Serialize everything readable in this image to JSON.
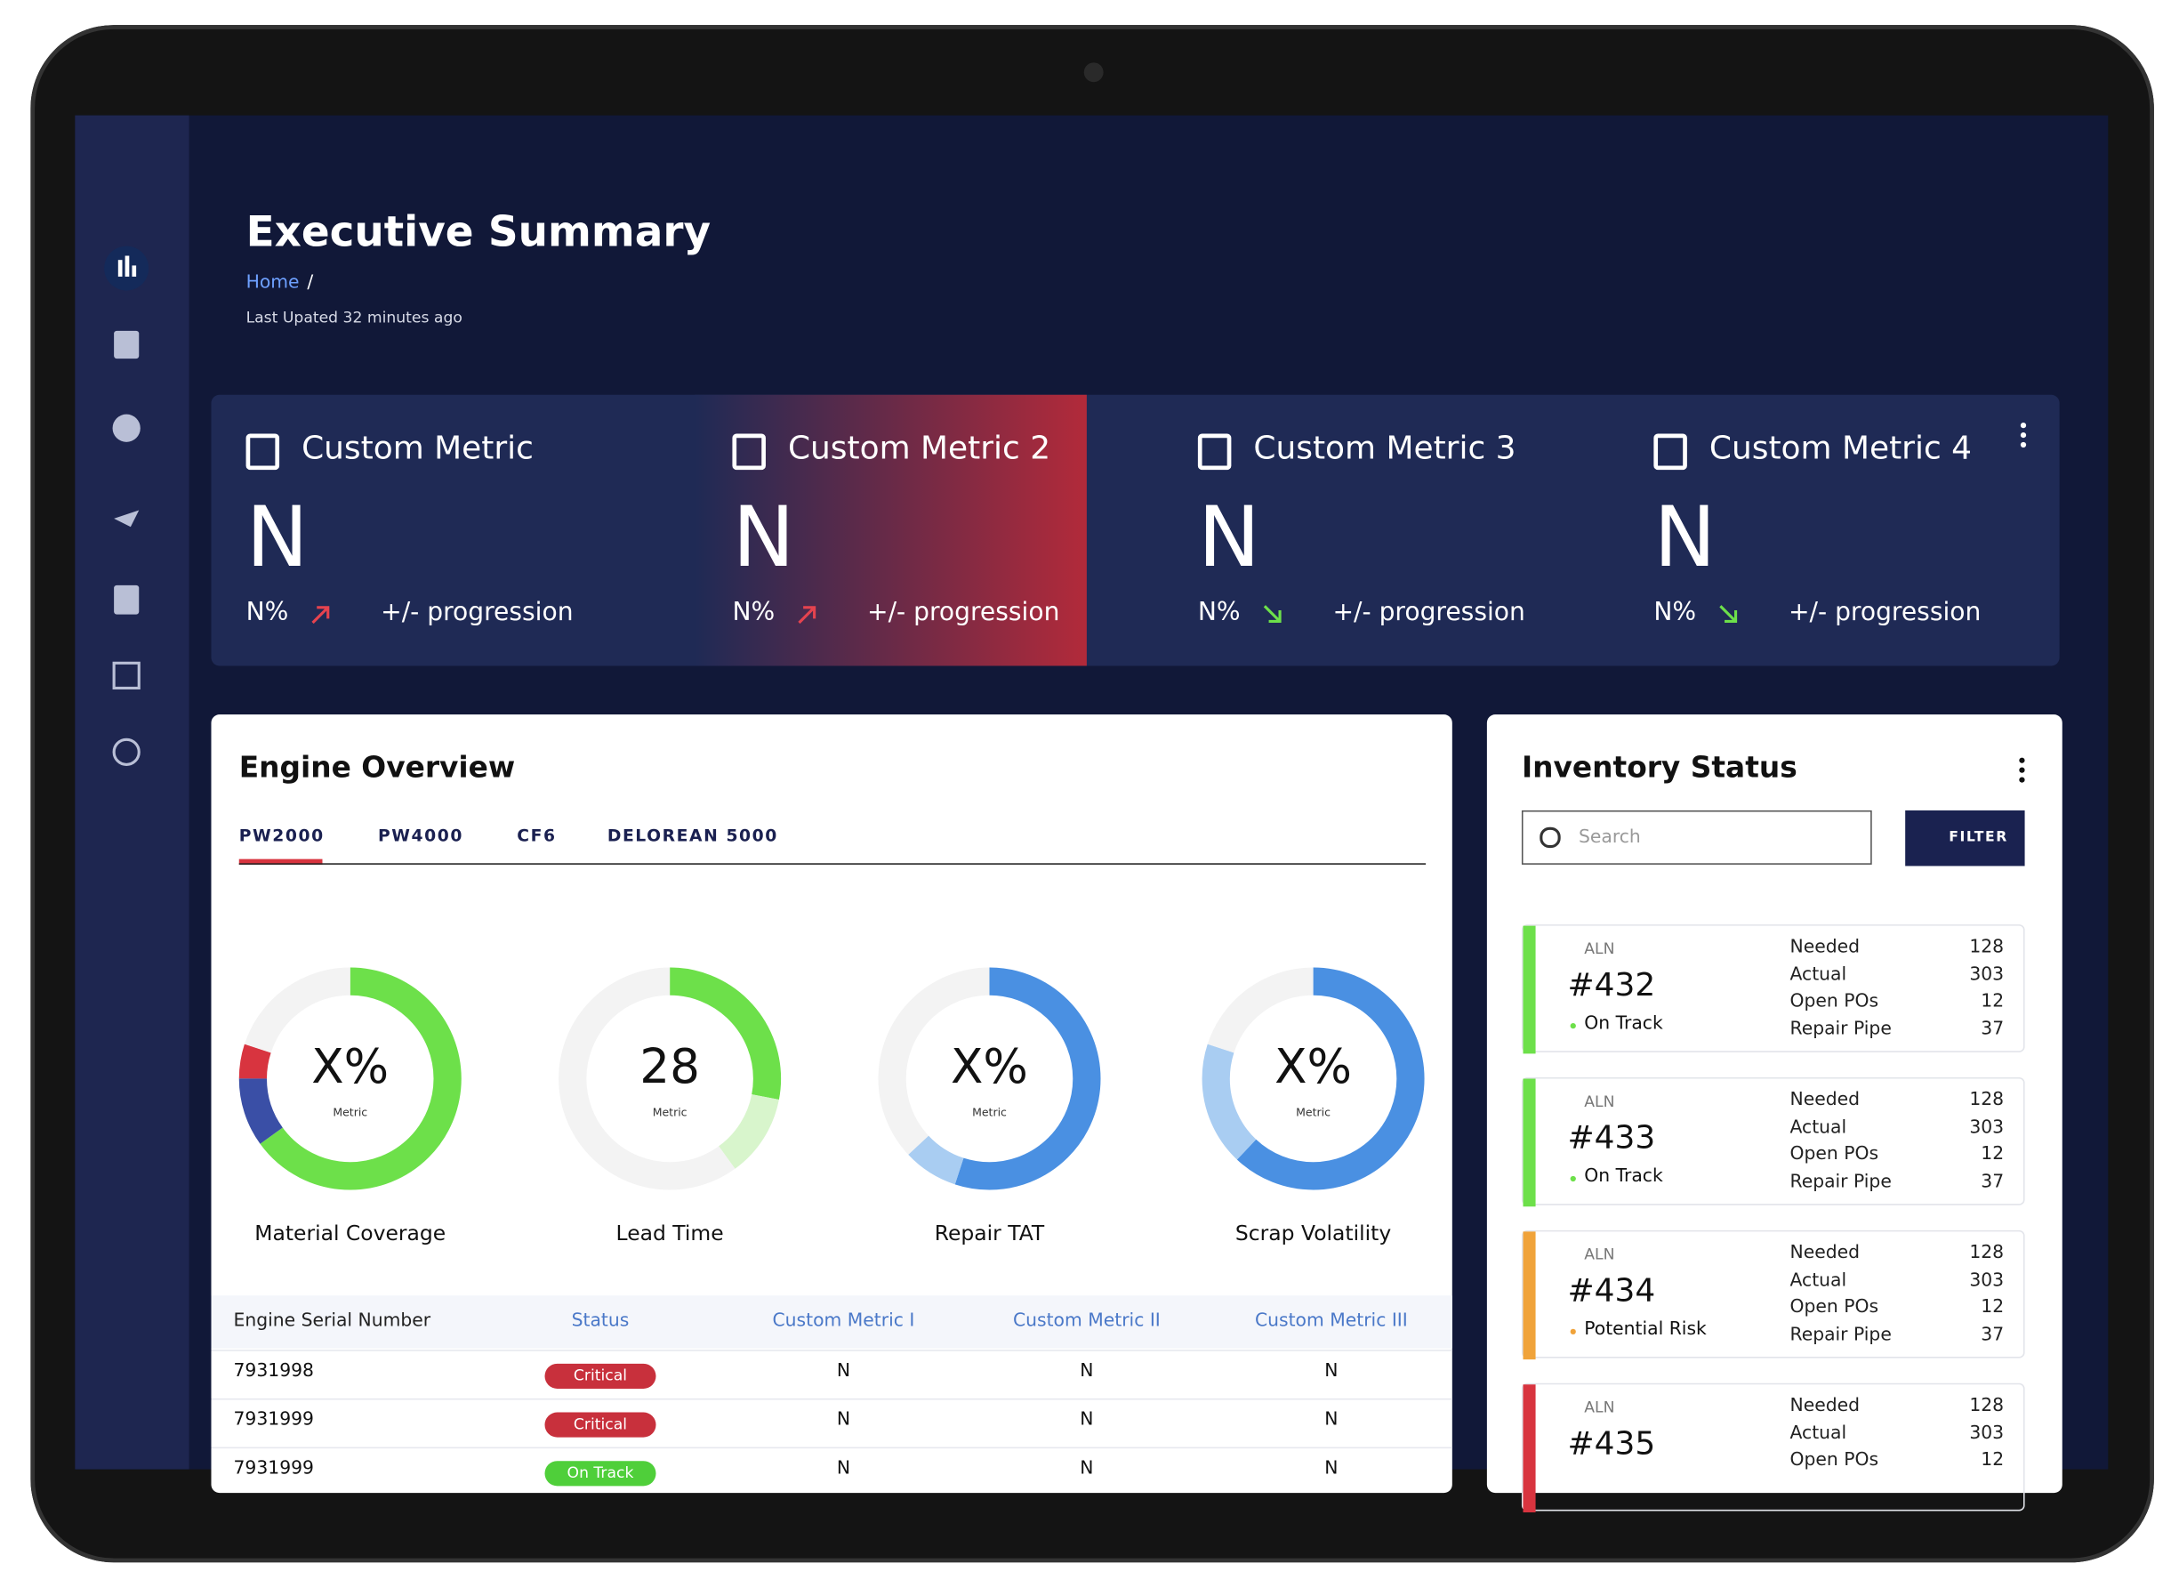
{
  "header": {
    "title": "Executive Summary",
    "breadcrumb": "Home",
    "separator": "/",
    "updated": "Last Upated 32 minutes ago"
  },
  "metrics": [
    {
      "title": "Custom Metric",
      "value": "N",
      "change": "N%",
      "trend": "up",
      "progression": "+/- progression"
    },
    {
      "title": "Custom Metric 2",
      "value": "N",
      "change": "N%",
      "trend": "up",
      "progression": "+/- progression"
    },
    {
      "title": "Custom Metric 3",
      "value": "N",
      "change": "N%",
      "trend": "down",
      "progression": "+/- progression"
    },
    {
      "title": "Custom Metric 4",
      "value": "N",
      "change": "N%",
      "trend": "down",
      "progression": "+/- progression"
    }
  ],
  "engine": {
    "title": "Engine Overview",
    "tabs": [
      "PW2000",
      "PW4000",
      "CF6",
      "DELOREAN 5000"
    ],
    "active_tab": 0,
    "donuts": [
      {
        "center": "X%",
        "sub": "Metric",
        "label": "Material Coverage",
        "segments": [
          {
            "color": "#6de04a",
            "value": 65
          },
          {
            "color": "#3a4fa6",
            "value": 10
          },
          {
            "color": "#d8343f",
            "value": 5
          },
          {
            "color": "#f3f3f3",
            "value": 20
          }
        ]
      },
      {
        "center": "28",
        "sub": "Metric",
        "label": "Lead Time",
        "segments": [
          {
            "color": "#6de04a",
            "value": 28
          },
          {
            "color": "#d8f5cc",
            "value": 12
          },
          {
            "color": "#f3f3f3",
            "value": 60
          }
        ]
      },
      {
        "center": "X%",
        "sub": "Metric",
        "label": "Repair TAT",
        "segments": [
          {
            "color": "#4a90e2",
            "value": 55
          },
          {
            "color": "#a9cdf2",
            "value": 8
          },
          {
            "color": "#f3f3f3",
            "value": 37
          }
        ]
      },
      {
        "center": "X%",
        "sub": "Metric",
        "label": "Scrap Volatility",
        "segments": [
          {
            "color": "#4a90e2",
            "value": 62
          },
          {
            "color": "#a9cdf2",
            "value": 18
          },
          {
            "color": "#f3f3f3",
            "value": 20
          }
        ]
      }
    ],
    "table": {
      "columns": [
        "Engine Serial Number",
        "Status",
        "Custom Metric I",
        "Custom Metric II",
        "Custom Metric III"
      ],
      "rows": [
        [
          "7931998",
          "Critical",
          "N",
          "N",
          "N"
        ],
        [
          "7931999",
          "Critical",
          "N",
          "N",
          "N"
        ],
        [
          "7931999",
          "On Track",
          "N",
          "N",
          "N"
        ]
      ]
    }
  },
  "inventory": {
    "title": "Inventory Status",
    "search": "Search",
    "filter": "FILTER",
    "items": [
      {
        "tag": "ALN",
        "id": "#432",
        "status": "On Track",
        "color": "#6de04a",
        "stats": [
          {
            "label": "Needed",
            "value": 128
          },
          {
            "label": "Actual",
            "value": 303
          },
          {
            "label": "Open POs",
            "value": 12
          },
          {
            "label": "Repair Pipe",
            "value": 37
          }
        ]
      },
      {
        "tag": "ALN",
        "id": "#433",
        "status": "On Track",
        "color": "#6de04a",
        "stats": [
          {
            "label": "Needed",
            "value": 128
          },
          {
            "label": "Actual",
            "value": 303
          },
          {
            "label": "Open POs",
            "value": 12
          },
          {
            "label": "Repair Pipe",
            "value": 37
          }
        ]
      },
      {
        "tag": "ALN",
        "id": "#434",
        "status": "Potential Risk",
        "color": "#f0a33a",
        "stats": [
          {
            "label": "Needed",
            "value": 128
          },
          {
            "label": "Actual",
            "value": 303
          },
          {
            "label": "Open POs",
            "value": 12
          },
          {
            "label": "Repair Pipe",
            "value": 37
          }
        ]
      },
      {
        "tag": "ALN",
        "id": "#435",
        "status": "",
        "color": "#d8343f",
        "stats": [
          {
            "label": "Needed",
            "value": 128
          },
          {
            "label": "Actual",
            "value": 303
          },
          {
            "label": "Open POs",
            "value": 12
          }
        ]
      }
    ]
  }
}
